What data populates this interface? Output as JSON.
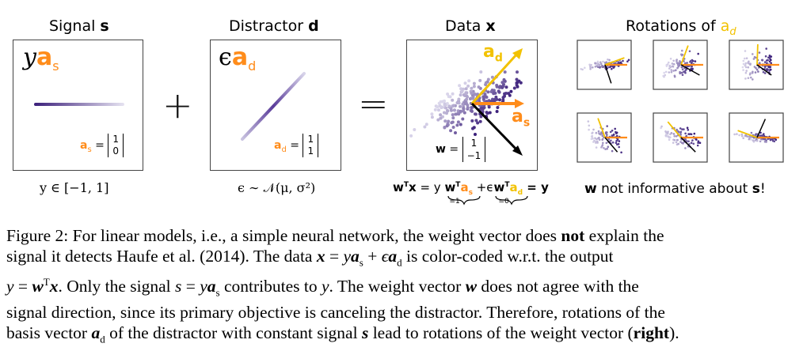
{
  "panels": {
    "signal": {
      "title": "Signal ",
      "title_bold": "s",
      "label_y": "y",
      "label_a": "a",
      "label_sub": "s",
      "vec_label": "a",
      "vec_sub": "s",
      "vec_values": [
        "1",
        "0"
      ],
      "formula": "y ∈ [−1, 1]"
    },
    "distractor": {
      "title": "Distractor ",
      "title_bold": "d",
      "label_eps": "ϵ",
      "label_a": "a",
      "label_sub": "d",
      "vec_label": "a",
      "vec_sub": "d",
      "vec_values": [
        "1",
        "1"
      ],
      "formula": "ϵ ∼ 𝒩(μ, σ²)"
    },
    "data": {
      "title": "Data ",
      "title_bold": "x",
      "ad_label": "a",
      "ad_sub": "d",
      "as_label": "a",
      "as_sub": "s",
      "w_label": "w",
      "w_values": [
        "1",
        "−1"
      ],
      "formula_parts": [
        "w",
        "T",
        "x",
        " = y ",
        "w",
        "T",
        "a",
        "s",
        " +ϵ",
        "w",
        "T",
        "a",
        "d",
        " = y"
      ],
      "under1": "=1",
      "under2": "=0"
    },
    "rotations": {
      "title": "Rotations of ",
      "title_sym": "a",
      "title_sub": "d",
      "note_bold": "w",
      "note_mid": " not informative about ",
      "note_end_bold": "s",
      "note_end": "!"
    }
  },
  "operators": {
    "plus": "+",
    "equals": "="
  },
  "caption": {
    "figure_label": "Figure 2:",
    "line1_a": "For linear models, i.e., a simple neural network, the weight vector does ",
    "line1_bold": "not",
    "line1_b": " explain the",
    "line2_a": "signal it detects Haufe et al. (2014).  The data ",
    "line2_x": "x",
    "line2_b": " = ",
    "line2_y": "y",
    "line2_as": "a",
    "line2_as_sub": "s",
    "line2_c": " + ",
    "line2_eps": "ϵ",
    "line2_ad": "a",
    "line2_ad_sub": "d",
    "line2_d": " is color-coded w.r.t.  the output",
    "line3_a": "y",
    "line3_b": " = ",
    "line3_w": "w",
    "line3_T": "T",
    "line3_x": "x",
    "line3_c": ". Only the signal ",
    "line3_s": "s",
    "line3_d": " = ",
    "line3_y2": "y",
    "line3_as": "a",
    "line3_as_sub": "s",
    "line3_e": " contributes to ",
    "line3_y3": "y",
    "line3_f": ". The weight vector ",
    "line3_w2": "w",
    "line3_g": " does not agree with the",
    "line4": "signal direction, since its primary objective is canceling the distractor.  Therefore, rotations of the",
    "line5_a": "basis vector ",
    "line5_ad": "a",
    "line5_ad_sub": "d",
    "line5_b": " of the distractor with constant signal ",
    "line5_s": "s",
    "line5_c": " lead to rotations of the weight vector (",
    "line5_bold": "right",
    "line5_d": ")."
  },
  "colors": {
    "orange": "#ff8c1a",
    "yellow": "#f2c200",
    "purple_dark": "#3b1f7a",
    "purple_light": "#c9c3e0",
    "black": "#000000"
  }
}
